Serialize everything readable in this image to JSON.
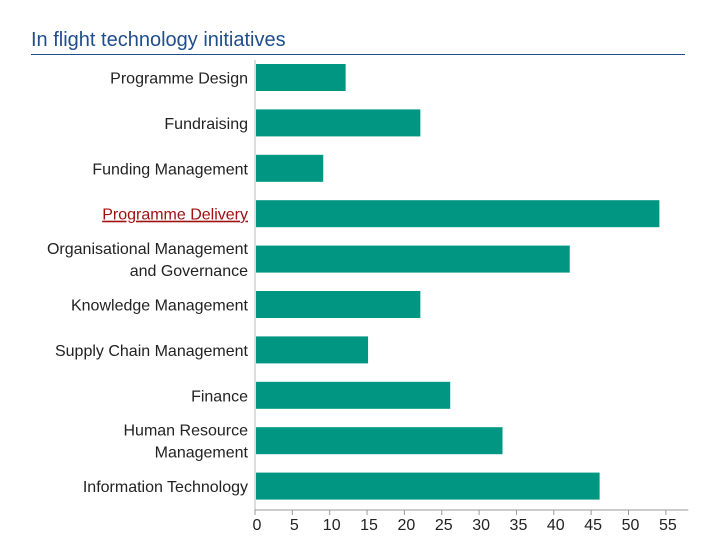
{
  "title": "In flight technology initiatives",
  "chart_data": {
    "type": "bar",
    "orientation": "horizontal",
    "title": "In flight technology initiatives",
    "categories": [
      [
        "Programme Design"
      ],
      [
        "Fundraising"
      ],
      [
        "Funding Management"
      ],
      [
        "Programme Delivery"
      ],
      [
        "Organisational Management",
        "and Governance"
      ],
      [
        "Knowledge Management"
      ],
      [
        "Supply Chain Management"
      ],
      [
        "Finance"
      ],
      [
        "Human Resource",
        "Management"
      ],
      [
        "Information Technology"
      ]
    ],
    "highlighted_category": "Programme Delivery",
    "values": [
      12,
      22,
      9,
      54,
      42,
      22,
      15,
      26,
      33,
      46
    ],
    "xlim": [
      0,
      58
    ],
    "xticks": [
      0,
      5,
      10,
      15,
      20,
      25,
      30,
      35,
      40,
      45,
      50,
      55
    ],
    "xlabel": "",
    "ylabel": "",
    "bar_color": "#009682",
    "highlight_color": "#a01010",
    "grid": false
  }
}
